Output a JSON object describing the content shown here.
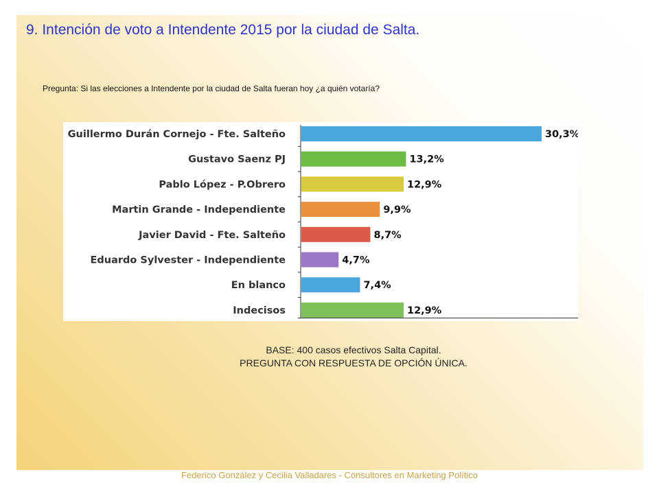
{
  "slide": {
    "title": "9. Intención de voto a Intendente 2015 por la ciudad de Salta.",
    "question": "Pregunta: Si las elecciones a Intendente por la ciudad de Salta fueran hoy ¿a quién votaría?",
    "base_line1": "BASE: 400 casos efectivos Salta Capital.",
    "base_line2": "PREGUNTA CON RESPUESTA DE OPCIÓN ÚNICA.",
    "footer": "Federico González y Cecilia Valladares - Consultores en Marketing Político"
  },
  "chart_data": {
    "type": "bar",
    "orientation": "horizontal",
    "categories": [
      "Guillermo Durán Cornejo - Fte. Salteño",
      "Gustavo Saenz PJ",
      "Pablo López - P.Obrero",
      "Martin Grande - Independiente",
      "Javier David - Fte. Salteño",
      "Eduardo Sylvester - Independiente",
      "En blanco",
      "Indecisos"
    ],
    "values": [
      30.3,
      13.2,
      12.9,
      9.9,
      8.7,
      4.7,
      7.4,
      12.9
    ],
    "value_labels": [
      "30,3%",
      "13,2%",
      "12,9%",
      "9,9%",
      "8,7%",
      "4,7%",
      "7,4%",
      "12,9%"
    ],
    "colors": [
      "#4aa6dd",
      "#6dbb45",
      "#d9c93c",
      "#e8913a",
      "#dc5a4a",
      "#9a78c4",
      "#4aa6dd",
      "#7ec05a"
    ],
    "xlim": [
      0,
      30.3
    ]
  }
}
